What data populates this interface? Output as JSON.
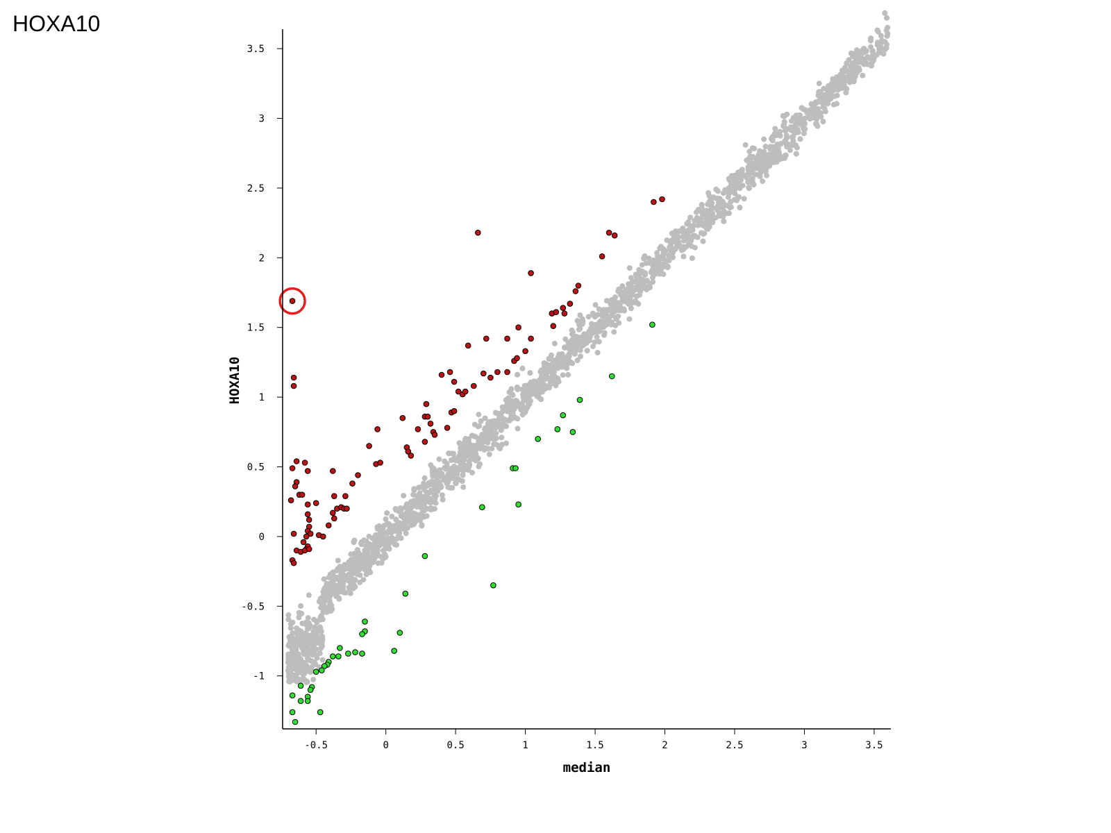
{
  "corner_label": "HOXA10",
  "chart_data": {
    "type": "scatter",
    "xlabel": "median",
    "ylabel": "HOXA10",
    "xlim": [
      -0.74,
      3.62
    ],
    "ylim": [
      -1.38,
      3.64
    ],
    "x_ticks": [
      -0.5,
      0,
      0.5,
      1,
      1.5,
      2,
      2.5,
      3,
      3.5
    ],
    "x_tick_labels": [
      "-0.5",
      "0",
      "0.5",
      "1",
      "1.5",
      "2",
      "2.5",
      "3",
      "3.5"
    ],
    "y_ticks": [
      -1,
      -0.5,
      0,
      0.5,
      1,
      1.5,
      2,
      2.5,
      3,
      3.5
    ],
    "y_tick_labels": [
      "-1",
      "-0.5",
      "0",
      "0.5",
      "1",
      "1.5",
      "2",
      "2.5",
      "3",
      "3.5"
    ],
    "grid": false,
    "colors": {
      "background_points": "#bdbdbd",
      "up": "#b81414",
      "down": "#33dd33",
      "highlight_ring": "#e02020",
      "axis": "#000000"
    },
    "series": [
      {
        "values": [],
        "color": "#bdbdbd",
        "note_trend": "dense gray cloud along diagonal y≈x from (-0.7,-0.95) to (3.6,3.6)"
      },
      {
        "color": "#b81414",
        "points": [
          [
            -0.67,
            1.69
          ],
          [
            -0.66,
            1.14
          ],
          [
            -0.66,
            1.08
          ],
          [
            -0.64,
            0.54
          ],
          [
            -0.58,
            0.53
          ],
          [
            -0.67,
            0.49
          ],
          [
            -0.56,
            0.47
          ],
          [
            -0.64,
            0.39
          ],
          [
            -0.65,
            0.36
          ],
          [
            -0.62,
            0.3
          ],
          [
            -0.6,
            0.3
          ],
          [
            -0.68,
            0.26
          ],
          [
            -0.56,
            0.23
          ],
          [
            -0.5,
            0.24
          ],
          [
            -0.56,
            0.16
          ],
          [
            -0.55,
            0.12
          ],
          [
            -0.55,
            0.07
          ],
          [
            -0.56,
            0.04
          ],
          [
            -0.54,
            0.02
          ],
          [
            -0.57,
            0.0
          ],
          [
            -0.66,
            0.02
          ],
          [
            -0.59,
            -0.04
          ],
          [
            -0.56,
            -0.07
          ],
          [
            -0.57,
            -0.09
          ],
          [
            -0.64,
            -0.1
          ],
          [
            -0.61,
            -0.11
          ],
          [
            -0.58,
            -0.1
          ],
          [
            -0.55,
            -0.09
          ],
          [
            -0.67,
            -0.17
          ],
          [
            -0.66,
            -0.19
          ],
          [
            -0.48,
            0.01
          ],
          [
            -0.45,
            0.0
          ],
          [
            -0.38,
            0.47
          ],
          [
            -0.37,
            0.29
          ],
          [
            -0.38,
            0.17
          ],
          [
            -0.35,
            0.2
          ],
          [
            -0.32,
            0.21
          ],
          [
            -0.3,
            0.2
          ],
          [
            -0.28,
            0.2
          ],
          [
            -0.29,
            0.29
          ],
          [
            -0.37,
            0.13
          ],
          [
            -0.41,
            0.08
          ],
          [
            -0.24,
            0.38
          ],
          [
            -0.2,
            0.44
          ],
          [
            -0.12,
            0.65
          ],
          [
            -0.07,
            0.52
          ],
          [
            -0.04,
            0.53
          ],
          [
            -0.06,
            0.77
          ],
          [
            0.12,
            0.85
          ],
          [
            0.15,
            0.64
          ],
          [
            0.16,
            0.61
          ],
          [
            0.18,
            0.58
          ],
          [
            0.23,
            0.77
          ],
          [
            0.28,
            0.68
          ],
          [
            0.28,
            0.86
          ],
          [
            0.3,
            0.86
          ],
          [
            0.29,
            0.95
          ],
          [
            0.32,
            0.81
          ],
          [
            0.34,
            0.75
          ],
          [
            0.35,
            0.73
          ],
          [
            0.4,
            1.16
          ],
          [
            0.44,
            0.78
          ],
          [
            0.47,
            0.89
          ],
          [
            0.49,
            0.9
          ],
          [
            0.46,
            1.18
          ],
          [
            0.49,
            1.11
          ],
          [
            0.52,
            1.04
          ],
          [
            0.55,
            1.02
          ],
          [
            0.57,
            1.04
          ],
          [
            0.59,
            1.37
          ],
          [
            0.63,
            1.08
          ],
          [
            0.66,
            2.18
          ],
          [
            0.7,
            1.17
          ],
          [
            0.72,
            1.42
          ],
          [
            0.75,
            1.14
          ],
          [
            0.8,
            1.18
          ],
          [
            0.87,
            1.42
          ],
          [
            0.87,
            1.18
          ],
          [
            0.92,
            1.26
          ],
          [
            0.94,
            1.28
          ],
          [
            0.95,
            1.5
          ],
          [
            1.0,
            1.33
          ],
          [
            1.04,
            1.89
          ],
          [
            1.04,
            1.42
          ],
          [
            1.19,
            1.6
          ],
          [
            1.22,
            1.61
          ],
          [
            1.2,
            1.51
          ],
          [
            1.27,
            1.64
          ],
          [
            1.28,
            1.6
          ],
          [
            1.32,
            1.67
          ],
          [
            1.36,
            1.76
          ],
          [
            1.38,
            1.8
          ],
          [
            1.55,
            2.01
          ],
          [
            1.6,
            2.18
          ],
          [
            1.64,
            2.16
          ],
          [
            1.92,
            2.4
          ],
          [
            1.98,
            2.42
          ]
        ]
      },
      {
        "color": "#33dd33",
        "points": [
          [
            1.91,
            1.52
          ],
          [
            1.62,
            1.15
          ],
          [
            1.39,
            0.98
          ],
          [
            1.27,
            0.87
          ],
          [
            1.23,
            0.77
          ],
          [
            1.34,
            0.75
          ],
          [
            1.09,
            0.7
          ],
          [
            0.91,
            0.49
          ],
          [
            0.93,
            0.49
          ],
          [
            0.95,
            0.23
          ],
          [
            0.69,
            0.21
          ],
          [
            0.28,
            -0.14
          ],
          [
            0.77,
            -0.35
          ],
          [
            0.14,
            -0.41
          ],
          [
            0.1,
            -0.69
          ],
          [
            0.06,
            -0.82
          ],
          [
            -0.15,
            -0.61
          ],
          [
            -0.15,
            -0.68
          ],
          [
            -0.17,
            -0.7
          ],
          [
            -0.17,
            -0.84
          ],
          [
            -0.22,
            -0.83
          ],
          [
            -0.27,
            -0.84
          ],
          [
            -0.33,
            -0.8
          ],
          [
            -0.34,
            -0.86
          ],
          [
            -0.38,
            -0.86
          ],
          [
            -0.41,
            -0.9
          ],
          [
            -0.42,
            -0.92
          ],
          [
            -0.44,
            -0.93
          ],
          [
            -0.46,
            -0.96
          ],
          [
            -0.5,
            -0.97
          ],
          [
            -0.53,
            -1.08
          ],
          [
            -0.54,
            -1.1
          ],
          [
            -0.56,
            -1.15
          ],
          [
            -0.56,
            -1.18
          ],
          [
            -0.61,
            -1.18
          ],
          [
            -0.61,
            -1.07
          ],
          [
            -0.67,
            -1.14
          ],
          [
            -0.67,
            -1.26
          ],
          [
            -0.65,
            -1.33
          ],
          [
            -0.47,
            -1.26
          ]
        ]
      }
    ]
  }
}
